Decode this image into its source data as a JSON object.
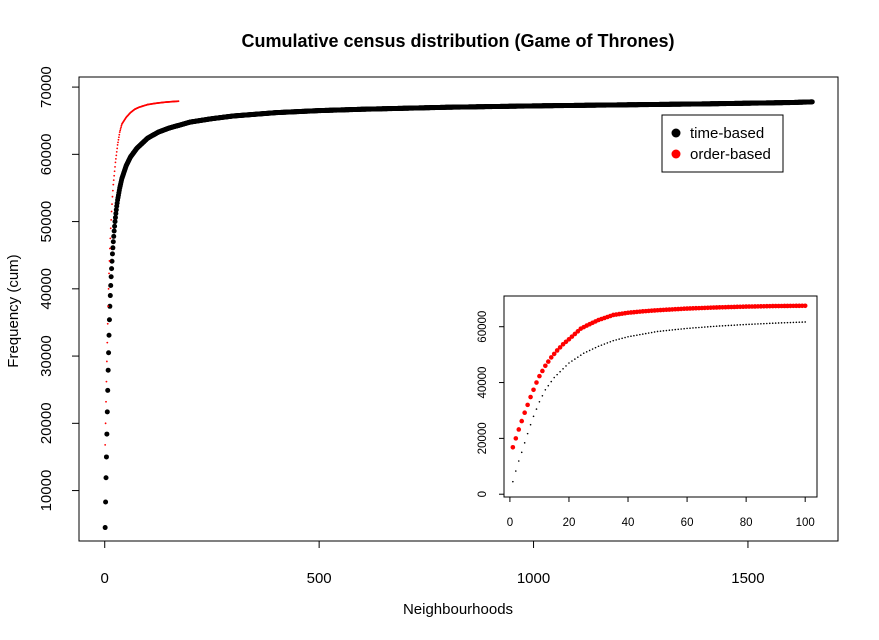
{
  "chart_data": [
    {
      "type": "scatter",
      "title": "Cumulative census distribution (Game of Thrones)",
      "xlabel": "Neighbourhoods",
      "ylabel": "Frequency (cum)",
      "xlim": [
        -60,
        1710
      ],
      "ylim": [
        2500,
        71500
      ],
      "xticks": [
        0,
        500,
        1000,
        1500
      ],
      "yticks": [
        10000,
        20000,
        30000,
        40000,
        50000,
        60000,
        70000
      ],
      "legend": {
        "position": "top-right",
        "entries": [
          {
            "label": "time-based",
            "color": "#000000"
          },
          {
            "label": "order-based",
            "color": "#ff0000"
          }
        ]
      },
      "series": [
        {
          "name": "time-based",
          "color": "#000000",
          "marker": "dot",
          "x": [
            1,
            2,
            3,
            4,
            5,
            6,
            7,
            8,
            9,
            10,
            11,
            12,
            13,
            14,
            15,
            16,
            17,
            18,
            19,
            20,
            22,
            24,
            26,
            28,
            30,
            35,
            40,
            50,
            60,
            75,
            100,
            125,
            150,
            200,
            250,
            300,
            400,
            500,
            600,
            800,
            1000,
            1200,
            1400,
            1600,
            1650
          ],
          "y": [
            4500,
            8300,
            11900,
            15000,
            18400,
            21700,
            24900,
            27900,
            30500,
            33100,
            35400,
            37400,
            39000,
            40500,
            41800,
            43000,
            44100,
            45200,
            46100,
            47000,
            48600,
            50000,
            51200,
            52300,
            53200,
            55000,
            56400,
            58300,
            59600,
            60900,
            62400,
            63300,
            63900,
            64800,
            65300,
            65700,
            66200,
            66500,
            66700,
            67000,
            67200,
            67350,
            67500,
            67700,
            67800
          ]
        },
        {
          "name": "order-based",
          "color": "#ff0000",
          "marker": "pixel",
          "x": [
            1,
            2,
            3,
            4,
            5,
            6,
            7,
            8,
            9,
            10,
            12,
            14,
            16,
            18,
            20,
            25,
            30,
            35,
            40,
            50,
            60,
            70,
            80,
            100,
            120,
            140,
            160,
            172
          ],
          "y": [
            16800,
            20000,
            23200,
            26200,
            29200,
            32000,
            34800,
            37400,
            40000,
            42300,
            46000,
            49000,
            51500,
            53700,
            55500,
            58800,
            61400,
            63300,
            64500,
            65500,
            66200,
            66700,
            67000,
            67400,
            67600,
            67750,
            67850,
            67900
          ]
        }
      ]
    },
    {
      "type": "scatter",
      "title": "",
      "xlabel": "",
      "ylabel": "",
      "xlim": [
        -2,
        104
      ],
      "ylim": [
        -1000,
        71000
      ],
      "xticks": [
        0,
        20,
        40,
        60,
        80,
        100
      ],
      "yticks": [
        0,
        20000,
        40000,
        60000
      ],
      "series": [
        {
          "name": "time-based",
          "color": "#000000",
          "marker": "pixel",
          "x": [
            1,
            2,
            3,
            4,
            5,
            6,
            7,
            8,
            9,
            10,
            12,
            15,
            20,
            25,
            30,
            35,
            40,
            50,
            60,
            70,
            80,
            90,
            100
          ],
          "y": [
            4500,
            8300,
            11900,
            15000,
            18400,
            21700,
            24900,
            27900,
            30500,
            33100,
            37400,
            41800,
            47000,
            50500,
            53000,
            55000,
            56400,
            58300,
            59400,
            60200,
            60800,
            61300,
            61700
          ]
        },
        {
          "name": "order-based",
          "color": "#ff0000",
          "marker": "dot",
          "x": [
            1,
            2,
            3,
            4,
            5,
            6,
            7,
            8,
            9,
            10,
            12,
            14,
            16,
            18,
            20,
            22,
            24,
            26,
            28,
            30,
            35,
            40,
            45,
            50,
            60,
            70,
            80,
            90,
            100
          ],
          "y": [
            16800,
            20000,
            23200,
            26200,
            29200,
            32000,
            34800,
            37400,
            40000,
            42300,
            46000,
            49000,
            51500,
            53700,
            55500,
            57400,
            59300,
            60400,
            61400,
            62400,
            64200,
            65000,
            65500,
            65900,
            66500,
            66900,
            67200,
            67400,
            67500
          ]
        }
      ]
    }
  ]
}
